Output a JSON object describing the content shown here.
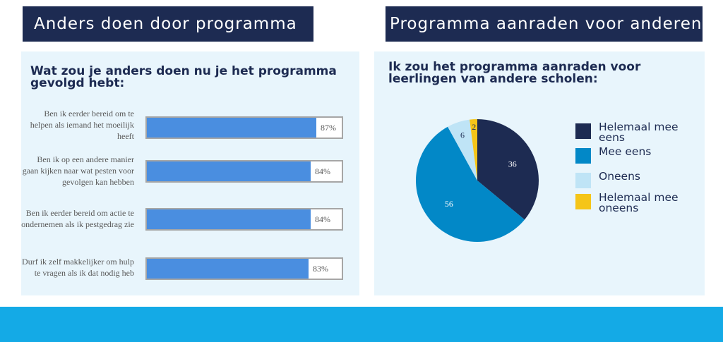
{
  "left_section": {
    "header": "Anders doen door programma",
    "question": "Wat zou je anders doen nu je het programma gevolgd hebt:"
  },
  "right_section": {
    "header": "Programma aanraden voor anderen",
    "question": "Ik zou het programma aanraden voor leerlingen van andere scholen:"
  },
  "colors": {
    "navy": "#1d2b52",
    "bar": "#4a8ee0",
    "panel": "#e8f5fc",
    "footer": "#14aae6"
  },
  "chart_data": [
    {
      "type": "bar",
      "orientation": "horizontal",
      "categories": [
        "Ben ik eerder bereid om te helpen als iemand het moeilijk heeft",
        "Ben ik op een andere manier gaan kijken naar wat pesten voor gevolgen kan hebben",
        "Ben ik eerder bereid om actie te ondernemen als ik pestgedrag zie",
        "Durf ik zelf makkelijker om hulp te vragen als ik dat nodig heb"
      ],
      "values": [
        87,
        84,
        84,
        83
      ],
      "value_labels": [
        "87%",
        "84%",
        "84%",
        "83%"
      ],
      "xlim": [
        0,
        100
      ]
    },
    {
      "type": "pie",
      "categories": [
        "Helemaal mee eens",
        "Mee eens",
        "Oneens",
        "Helemaal mee oneens"
      ],
      "values": [
        36,
        56,
        6,
        2
      ],
      "value_labels": [
        "36",
        "56",
        "6",
        "2"
      ],
      "colors": [
        "#1d2b52",
        "#0288c7",
        "#bfe4f6",
        "#f5c518"
      ],
      "label_colors": [
        "#ffffff",
        "#ffffff",
        "#1d2b52",
        "#1d2b52"
      ],
      "legend_position": "right"
    }
  ]
}
